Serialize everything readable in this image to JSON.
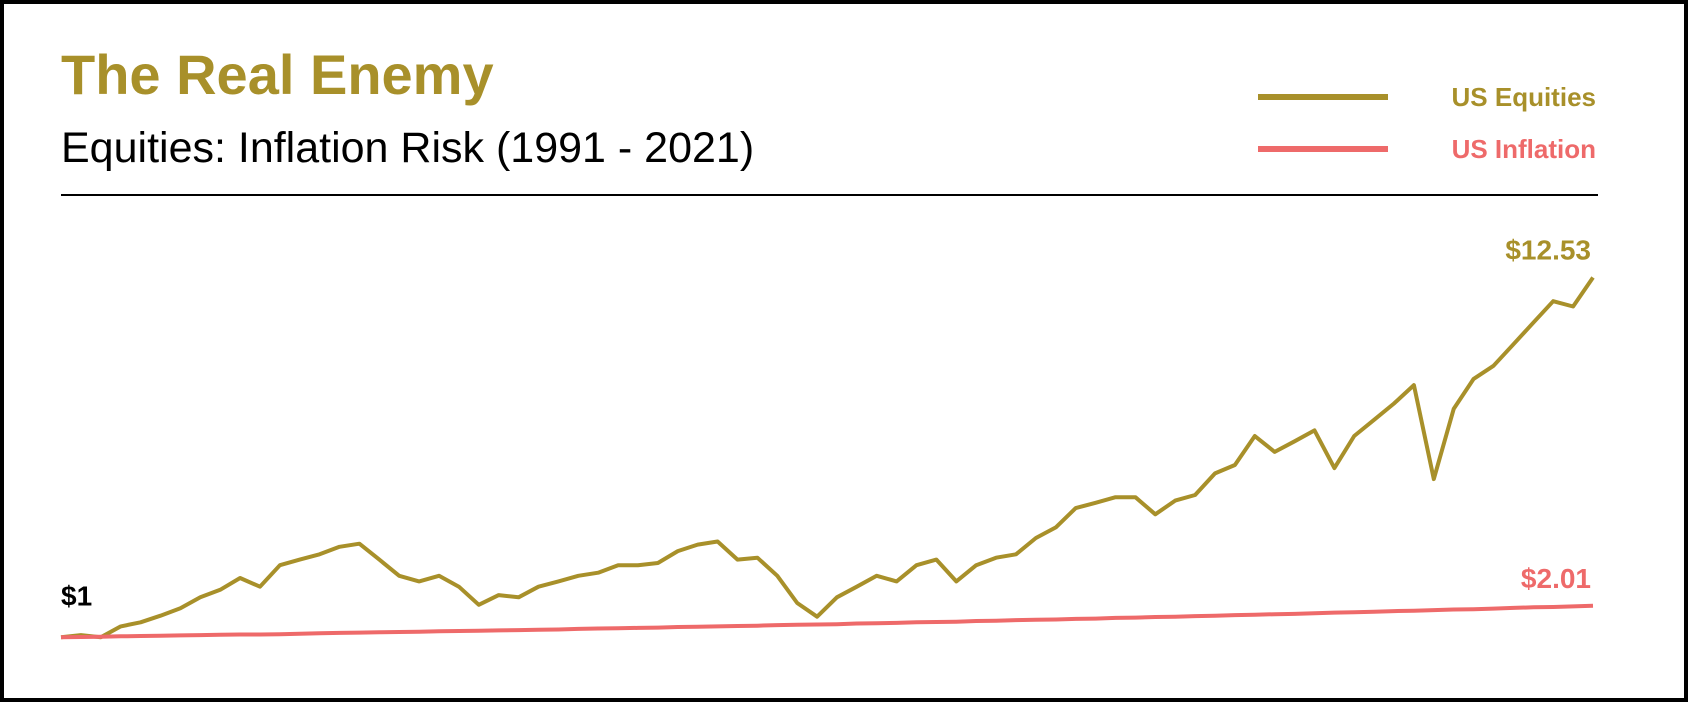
{
  "chart_data": {
    "type": "line",
    "title": "The Real Enemy",
    "subtitle": "Equities: Inflation Risk (1991 - 2021)",
    "legend": "top-right",
    "ylim": [
      0.4,
      14.5
    ],
    "start_label": {
      "value": 1,
      "label": "$1"
    },
    "series": [
      {
        "name": "US Equities",
        "color": "#a8902a",
        "values": [
          1.0,
          1.07,
          1.0,
          1.35,
          1.48,
          1.69,
          1.93,
          2.28,
          2.52,
          2.9,
          2.62,
          3.31,
          3.49,
          3.66,
          3.9,
          4.0,
          3.49,
          2.97,
          2.79,
          2.97,
          2.62,
          2.04,
          2.35,
          2.28,
          2.62,
          2.79,
          2.97,
          3.07,
          3.31,
          3.31,
          3.38,
          3.76,
          3.97,
          4.07,
          3.49,
          3.55,
          2.97,
          2.1,
          1.66,
          2.28,
          2.62,
          2.97,
          2.79,
          3.31,
          3.49,
          2.79,
          3.31,
          3.55,
          3.66,
          4.18,
          4.52,
          5.14,
          5.31,
          5.49,
          5.49,
          4.94,
          5.38,
          5.56,
          6.25,
          6.52,
          7.45,
          6.94,
          7.28,
          7.63,
          6.42,
          7.45,
          7.97,
          8.49,
          9.08,
          6.07,
          8.32,
          9.28,
          9.7,
          10.39,
          11.08,
          11.77,
          11.6,
          12.53
        ],
        "value_labels": [
          null,
          null,
          null,
          null,
          null,
          null,
          null,
          null,
          null,
          null,
          null,
          null,
          null,
          null,
          null,
          null,
          null,
          null,
          null,
          null,
          null,
          null,
          null,
          null,
          null,
          null,
          null,
          null,
          null,
          null,
          null,
          null,
          null,
          null,
          null,
          null,
          null,
          null,
          null,
          null,
          null,
          null,
          null,
          null,
          null,
          null,
          null,
          null,
          null,
          null,
          null,
          null,
          null,
          null,
          null,
          null,
          null,
          null,
          null,
          null,
          null,
          null,
          null,
          null,
          null,
          null,
          null,
          null,
          null,
          null,
          null,
          null,
          null,
          null,
          null,
          null,
          null,
          "$12.53"
        ]
      },
      {
        "name": "US Inflation",
        "color": "#ee6a6a",
        "values": [
          1.0,
          1.01,
          1.02,
          1.03,
          1.04,
          1.05,
          1.06,
          1.07,
          1.08,
          1.09,
          1.09,
          1.1,
          1.11,
          1.13,
          1.14,
          1.15,
          1.16,
          1.17,
          1.18,
          1.19,
          1.2,
          1.21,
          1.22,
          1.23,
          1.24,
          1.25,
          1.27,
          1.28,
          1.29,
          1.3,
          1.31,
          1.33,
          1.34,
          1.35,
          1.36,
          1.37,
          1.39,
          1.4,
          1.41,
          1.42,
          1.44,
          1.45,
          1.46,
          1.48,
          1.49,
          1.5,
          1.52,
          1.53,
          1.55,
          1.56,
          1.57,
          1.59,
          1.6,
          1.62,
          1.63,
          1.65,
          1.66,
          1.68,
          1.69,
          1.71,
          1.72,
          1.74,
          1.75,
          1.77,
          1.79,
          1.8,
          1.82,
          1.84,
          1.85,
          1.87,
          1.89,
          1.9,
          1.92,
          1.94,
          1.96,
          1.97,
          1.99,
          2.01
        ],
        "value_labels": [
          null,
          null,
          null,
          null,
          null,
          null,
          null,
          null,
          null,
          null,
          null,
          null,
          null,
          null,
          null,
          null,
          null,
          null,
          null,
          null,
          null,
          null,
          null,
          null,
          null,
          null,
          null,
          null,
          null,
          null,
          null,
          null,
          null,
          null,
          null,
          null,
          null,
          null,
          null,
          null,
          null,
          null,
          null,
          null,
          null,
          null,
          null,
          null,
          null,
          null,
          null,
          null,
          null,
          null,
          null,
          null,
          null,
          null,
          null,
          null,
          null,
          null,
          null,
          null,
          null,
          null,
          null,
          null,
          null,
          null,
          null,
          null,
          null,
          null,
          null,
          null,
          null,
          "$2.01"
        ]
      }
    ]
  }
}
